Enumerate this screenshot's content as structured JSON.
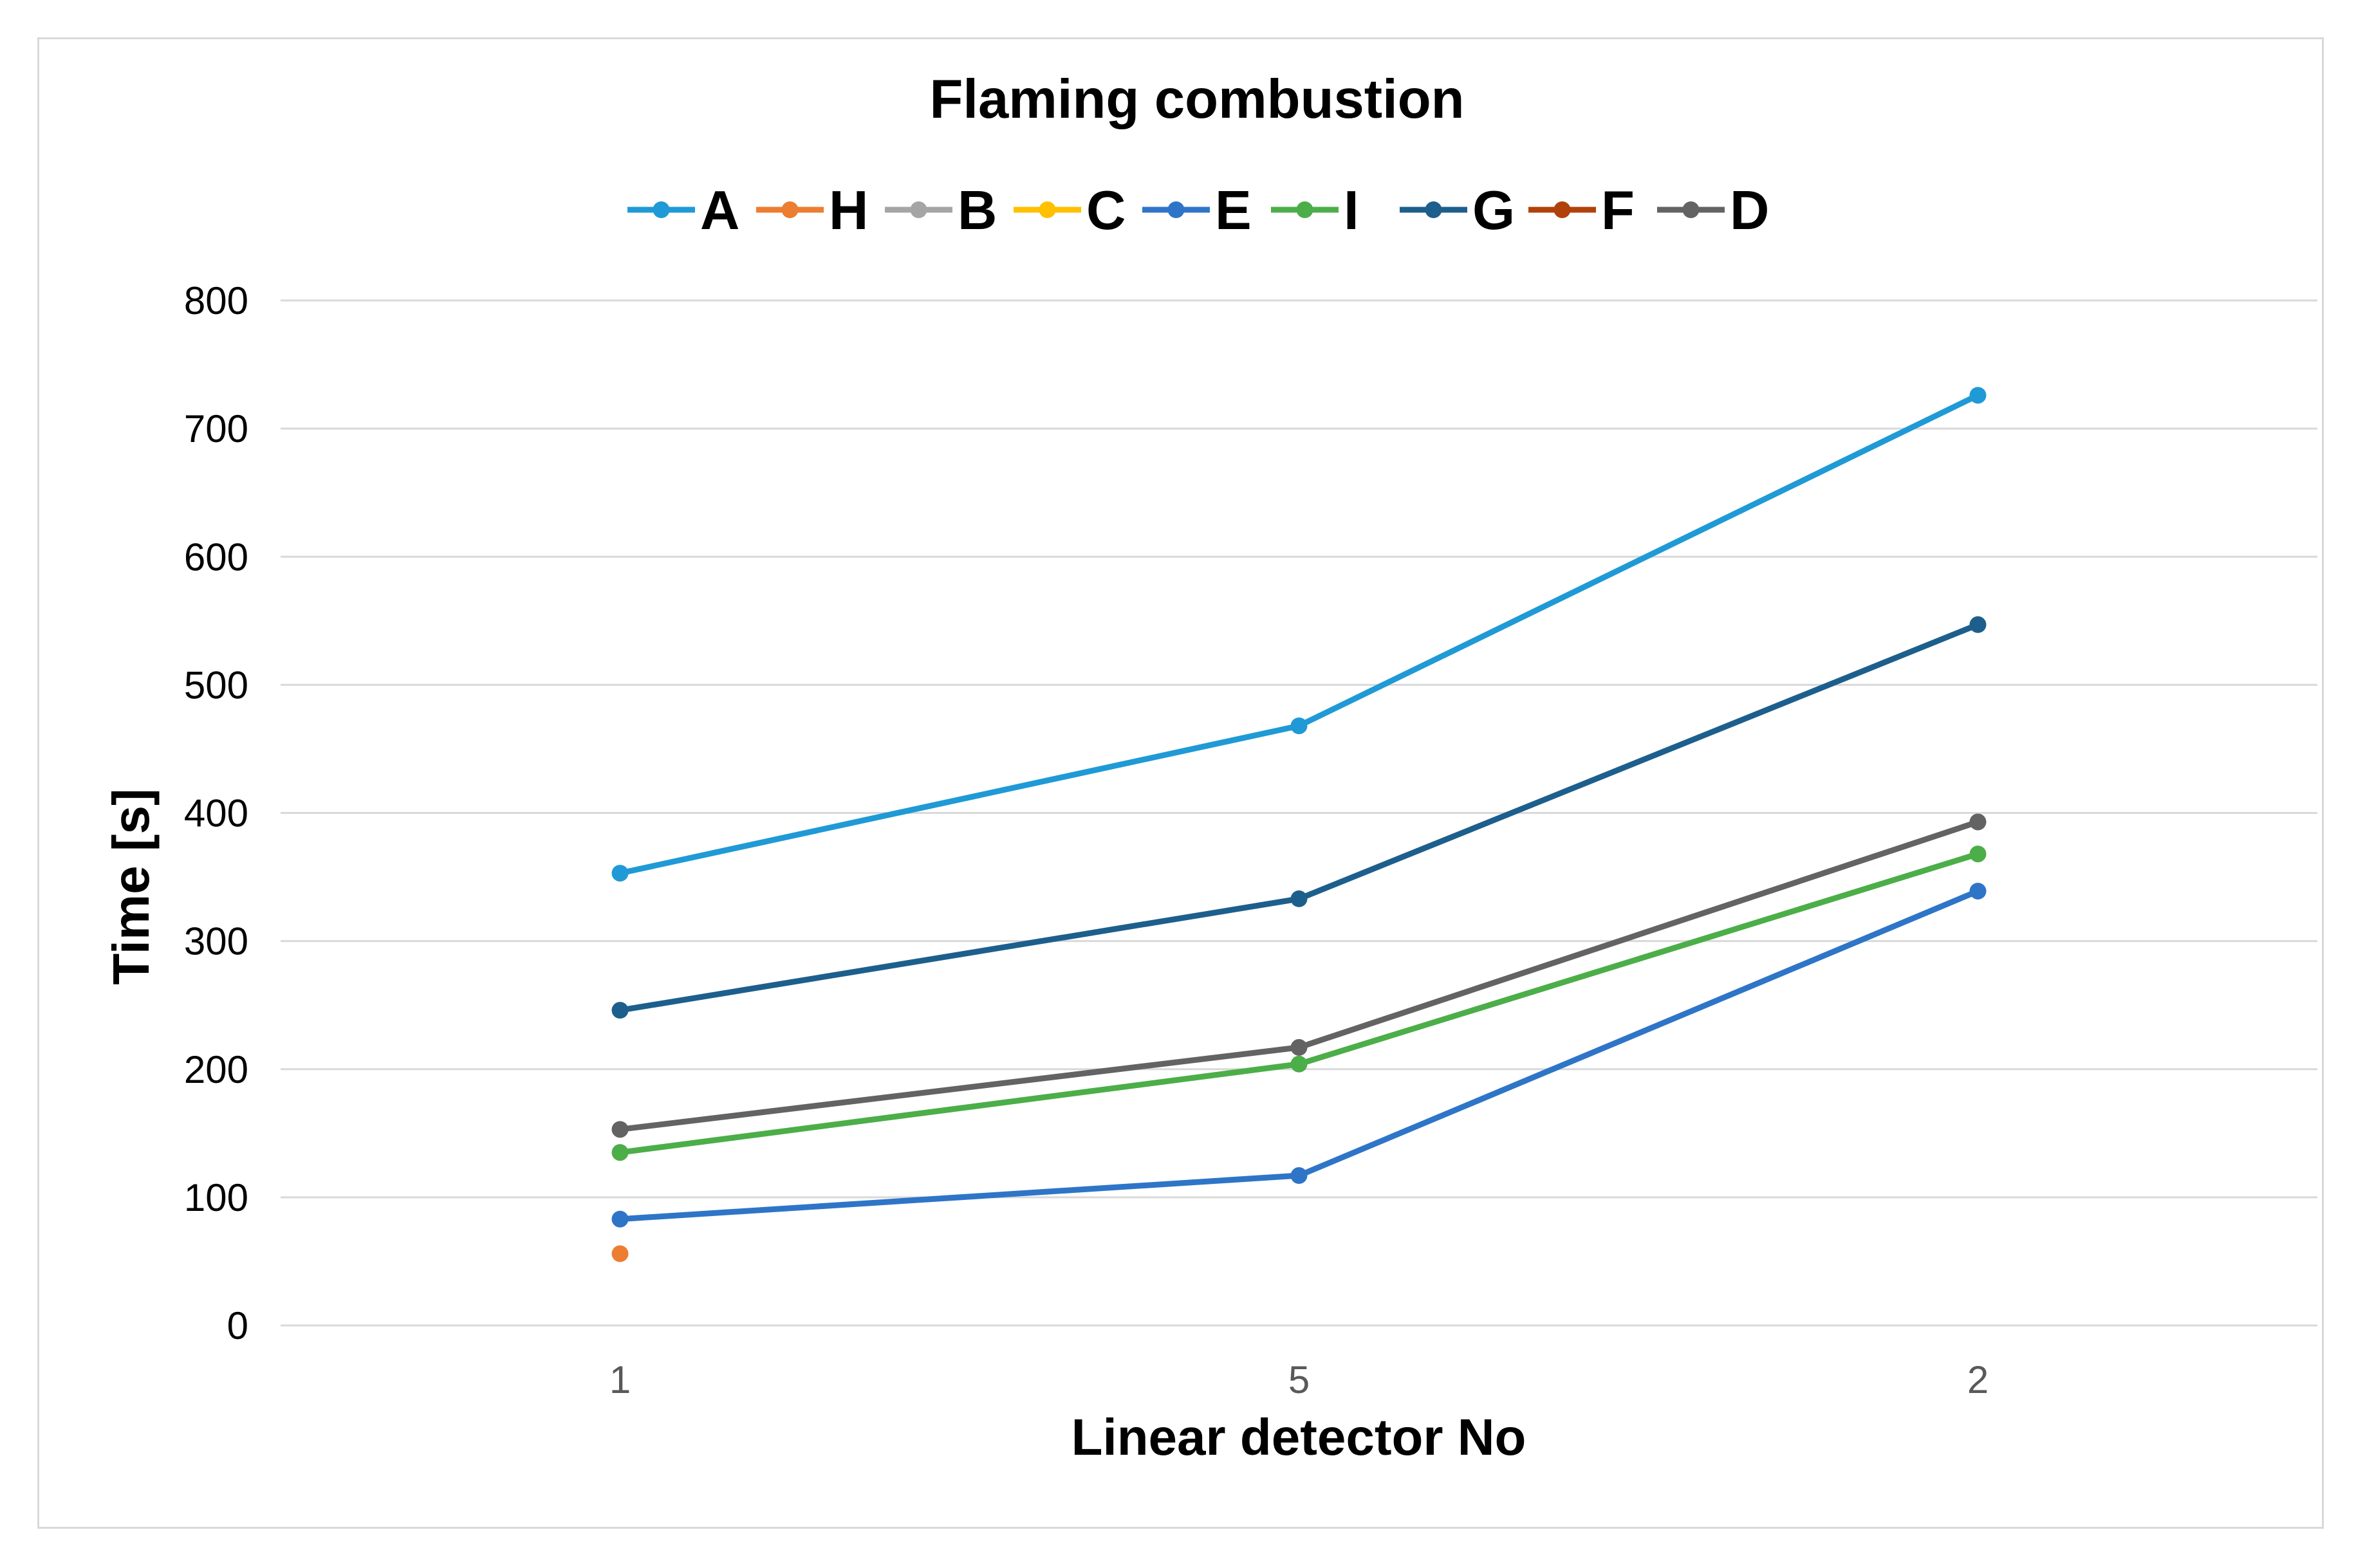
{
  "chart_data": {
    "type": "line",
    "title": "Flaming combustion",
    "xlabel": "Linear detector No",
    "ylabel": "Time [s]",
    "categories": [
      "1",
      "5",
      "2"
    ],
    "ylim": [
      0,
      800
    ],
    "yticks": [
      0,
      100,
      200,
      300,
      400,
      500,
      600,
      700,
      800
    ],
    "grid": true,
    "legend_position": "top",
    "series": [
      {
        "name": "A",
        "color": "#1f9ad6",
        "values": [
          353,
          468,
          726
        ]
      },
      {
        "name": "H",
        "color": "#ed7d31",
        "values": [
          56,
          null,
          null
        ]
      },
      {
        "name": "B",
        "color": "#a5a5a5",
        "values": [
          null,
          null,
          null
        ]
      },
      {
        "name": "C",
        "color": "#ffc000",
        "values": [
          null,
          null,
          null
        ]
      },
      {
        "name": "E",
        "color": "#2e75c8",
        "values": [
          83,
          117,
          339
        ]
      },
      {
        "name": "I",
        "color": "#4cae48",
        "values": [
          135,
          204,
          368
        ]
      },
      {
        "name": "G",
        "color": "#1d5f8c",
        "values": [
          246,
          333,
          547
        ]
      },
      {
        "name": "F",
        "color": "#b0410a",
        "values": [
          null,
          null,
          null
        ]
      },
      {
        "name": "D",
        "color": "#636363",
        "values": [
          153,
          217,
          393
        ]
      }
    ]
  }
}
